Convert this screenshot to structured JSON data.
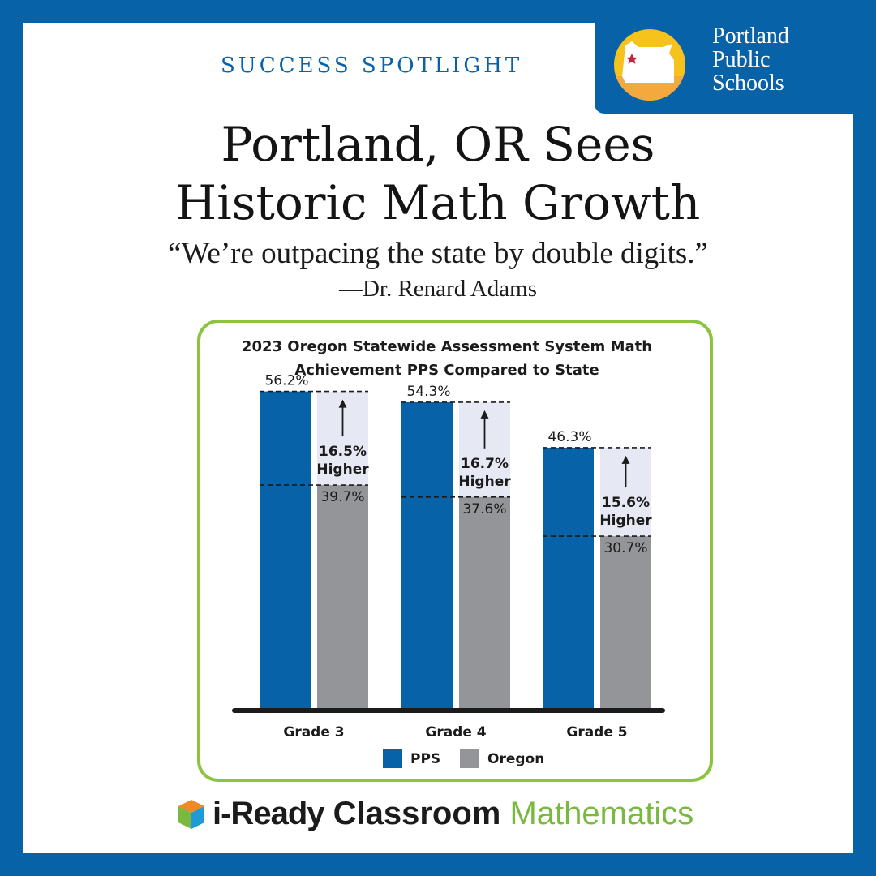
{
  "header": {
    "kicker": "SUCCESS SPOTLIGHT",
    "headline_line1": "Portland, OR Sees",
    "headline_line2": "Historic Math Growth",
    "quote": "“We’re outpacing the state by double digits.”",
    "attribution": "—Dr. Renard Adams"
  },
  "logo": {
    "line1": "Portland",
    "line2": "Public",
    "line3": "Schools",
    "icon": "oregon-map-icon"
  },
  "brand": {
    "icon": "cube-icon",
    "ready": "i-Ready",
    "classroom": " Classroom ",
    "mathematics": "Mathematics"
  },
  "colors": {
    "frame_blue": "#0862a8",
    "pps_bar": "#0862a8",
    "oregon_bar": "#939598",
    "gap_fill": "#e6e8f4",
    "chart_border": "#8cc43f",
    "brand_green": "#7ab940",
    "logo_yellow": "#f6c21c",
    "logo_orange": "#f4a93f"
  },
  "chart_data": {
    "type": "bar",
    "title_line1": "2023 Oregon Statewide Assessment System Math",
    "title_line2": "Achievement PPS Compared to State",
    "categories": [
      "Grade 3",
      "Grade 4",
      "Grade 5"
    ],
    "series": [
      {
        "name": "PPS",
        "values": [
          56.2,
          54.3,
          46.3
        ],
        "labels": [
          "56.2%",
          "54.3%",
          "46.3%"
        ]
      },
      {
        "name": "Oregon",
        "values": [
          39.7,
          37.6,
          30.7
        ],
        "labels": [
          "39.7%",
          "37.6%",
          "30.7%"
        ]
      }
    ],
    "annotations": [
      {
        "value": "16.5%",
        "text": "Higher"
      },
      {
        "value": "16.7%",
        "text": "Higher"
      },
      {
        "value": "15.6%",
        "text": "Higher"
      }
    ],
    "ylim": [
      0,
      60
    ],
    "legend_position": "bottom",
    "grid": false
  }
}
